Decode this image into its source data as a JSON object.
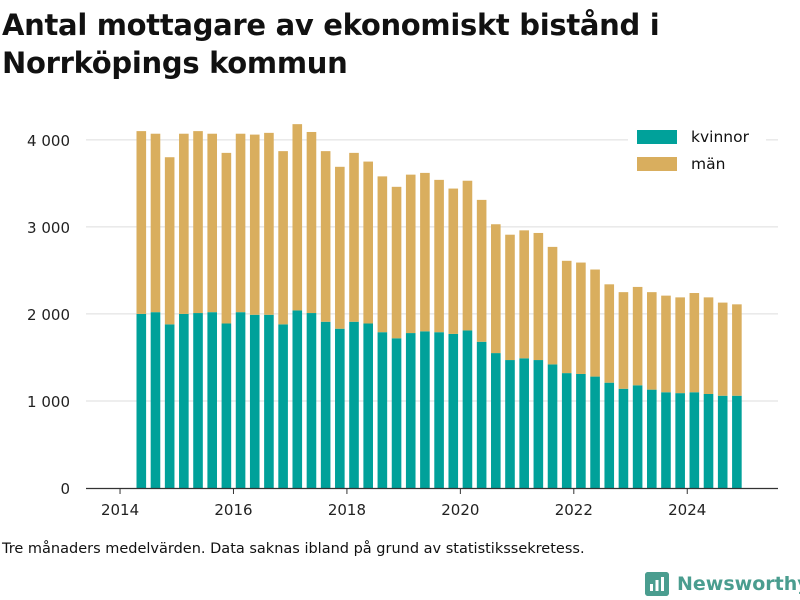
{
  "title": "Antal mottagare av ekonomiskt bistånd i Norrköpings kommun",
  "footnote": "Tre månaders medelvärden. Data saknas ibland på grund av statistikssekretess.",
  "brand": {
    "name": "Newsworthy",
    "icon": "newsworthy-logo-icon"
  },
  "colors": {
    "kvinnor": "#00a19a",
    "man": "#d9ae5e",
    "grid": "#dddddd",
    "axis": "#333333"
  },
  "chart_data": {
    "type": "bar",
    "stacked": true,
    "x": [
      2014.375,
      2014.625,
      2014.875,
      2015.125,
      2015.375,
      2015.625,
      2015.875,
      2016.125,
      2016.375,
      2016.625,
      2016.875,
      2017.125,
      2017.375,
      2017.625,
      2017.875,
      2018.125,
      2018.375,
      2018.625,
      2018.875,
      2019.125,
      2019.375,
      2019.625,
      2019.875,
      2020.125,
      2020.375,
      2020.625,
      2020.875,
      2021.125,
      2021.375,
      2021.625,
      2021.875,
      2022.125,
      2022.375,
      2022.625,
      2022.875,
      2023.125,
      2023.375,
      2023.625,
      2023.875,
      2024.125,
      2024.375,
      2024.625,
      2024.875
    ],
    "series": [
      {
        "name": "kvinnor",
        "values": [
          2000,
          2020,
          1880,
          2000,
          2010,
          2020,
          1890,
          2020,
          1990,
          1990,
          1880,
          2040,
          2010,
          1910,
          1830,
          1910,
          1890,
          1790,
          1720,
          1780,
          1800,
          1790,
          1770,
          1810,
          1680,
          1550,
          1470,
          1490,
          1470,
          1420,
          1320,
          1310,
          1280,
          1210,
          1140,
          1180,
          1130,
          1100,
          1090,
          1100,
          1080,
          1060,
          1060
        ]
      },
      {
        "name": "män",
        "values": [
          2100,
          2050,
          1920,
          2070,
          2090,
          2050,
          1960,
          2050,
          2070,
          2090,
          1990,
          2140,
          2080,
          1960,
          1860,
          1940,
          1860,
          1790,
          1740,
          1820,
          1820,
          1750,
          1670,
          1720,
          1630,
          1480,
          1440,
          1470,
          1460,
          1350,
          1290,
          1280,
          1230,
          1130,
          1110,
          1130,
          1120,
          1110,
          1100,
          1140,
          1110,
          1070,
          1050
        ]
      }
    ],
    "legend": [
      "kvinnor",
      "män"
    ],
    "legend_position": "top-right",
    "xlim": [
      2013.4,
      2025.6
    ],
    "ylim": [
      0,
      4400
    ],
    "x_ticks": [
      2014,
      2016,
      2018,
      2020,
      2022,
      2024
    ],
    "x_tick_labels": [
      "2014",
      "2016",
      "2018",
      "2020",
      "2022",
      "2024"
    ],
    "y_ticks": [
      0,
      1000,
      2000,
      3000,
      4000
    ],
    "y_tick_labels": [
      "0",
      "1 000",
      "2 000",
      "3 000",
      "4 000"
    ],
    "grid": "horizontal",
    "xlabel": "",
    "ylabel": ""
  }
}
